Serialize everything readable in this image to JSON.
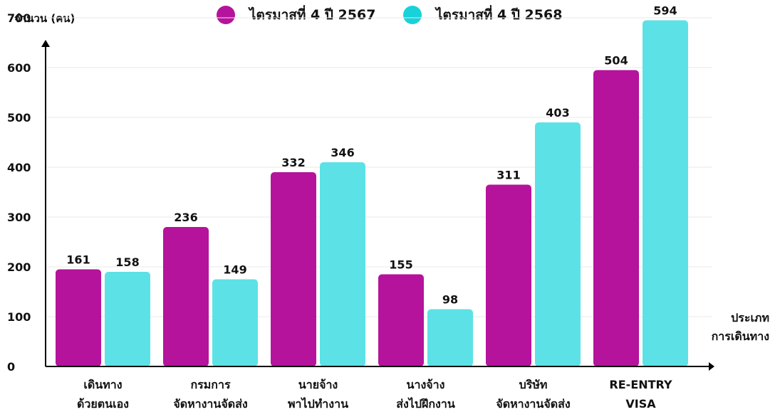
{
  "chart_data": {
    "type": "bar",
    "ylabel": "จำนวน (คน)",
    "xlabel_lines": [
      "ประเภท",
      "การเดินทาง"
    ],
    "categories": [
      [
        "เดินทาง",
        "ด้วยตนเอง"
      ],
      [
        "กรมการ",
        "จัดหางานจัดส่ง"
      ],
      [
        "นายจ้าง",
        "พาไปทำงาน"
      ],
      [
        "นางจ้าง",
        "ส่งไปฝึกงาน"
      ],
      [
        "บริษัท",
        "จัดหางานจัดส่ง"
      ],
      [
        "RE-ENTRY",
        "VISA"
      ]
    ],
    "yticks": [
      "0",
      "100",
      "200",
      "300",
      "400",
      "500",
      "600",
      "700"
    ],
    "grid": true,
    "legend_position": "top-center",
    "series": [
      {
        "name": "ไตรมาสที่ 4  ปี 2567",
        "color": "#B5139B",
        "values": [
          161,
          236,
          332,
          155,
          311,
          504
        ],
        "plot_values": [
          195,
          280,
          390,
          185,
          365,
          595
        ]
      },
      {
        "name": "ไตรมาสที่ 4 ปี 2568",
        "color": "#5CE2E6",
        "values": [
          158,
          149,
          346,
          98,
          403,
          594
        ],
        "plot_values": [
          190,
          175,
          410,
          115,
          490,
          695
        ]
      }
    ],
    "legend_colors": [
      "#B5139B",
      "#18D2DA"
    ]
  }
}
